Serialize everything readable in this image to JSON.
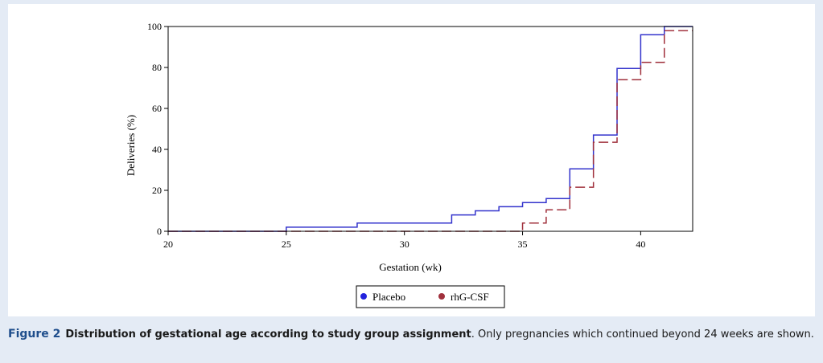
{
  "caption": {
    "label": "Figure 2",
    "title": "Distribution of gestational age according to study group assignment",
    "text": ". Only pregnancies which continued beyond 24 weeks are shown."
  },
  "chart_data": {
    "type": "line",
    "step": true,
    "xlabel": "Gestation (wk)",
    "ylabel": "Deliveries (%)",
    "xlim": [
      20,
      42.2
    ],
    "ylim": [
      0,
      100
    ],
    "xticks": [
      20,
      25,
      30,
      35,
      40
    ],
    "yticks": [
      0,
      20,
      40,
      60,
      80,
      100
    ],
    "grid": false,
    "legend_position": "bottom-center",
    "series": [
      {
        "name": "Placebo",
        "color": "#3333cc",
        "style": "solid",
        "points": [
          [
            20,
            0
          ],
          [
            25,
            2
          ],
          [
            28,
            4
          ],
          [
            32,
            8
          ],
          [
            33,
            10
          ],
          [
            34,
            12
          ],
          [
            35,
            14
          ],
          [
            36,
            16
          ],
          [
            37,
            30.5
          ],
          [
            38,
            47
          ],
          [
            39,
            79.5
          ],
          [
            40,
            96
          ],
          [
            41,
            100
          ],
          [
            42.2,
            100
          ]
        ]
      },
      {
        "name": "rhG-CSF",
        "color": "#a0303c",
        "style": "dashed",
        "points": [
          [
            20,
            0
          ],
          [
            35,
            4
          ],
          [
            36,
            10.5
          ],
          [
            37,
            21.5
          ],
          [
            38,
            43.5
          ],
          [
            39,
            74
          ],
          [
            40,
            82.5
          ],
          [
            41,
            98
          ],
          [
            42.2,
            98
          ]
        ]
      }
    ]
  }
}
